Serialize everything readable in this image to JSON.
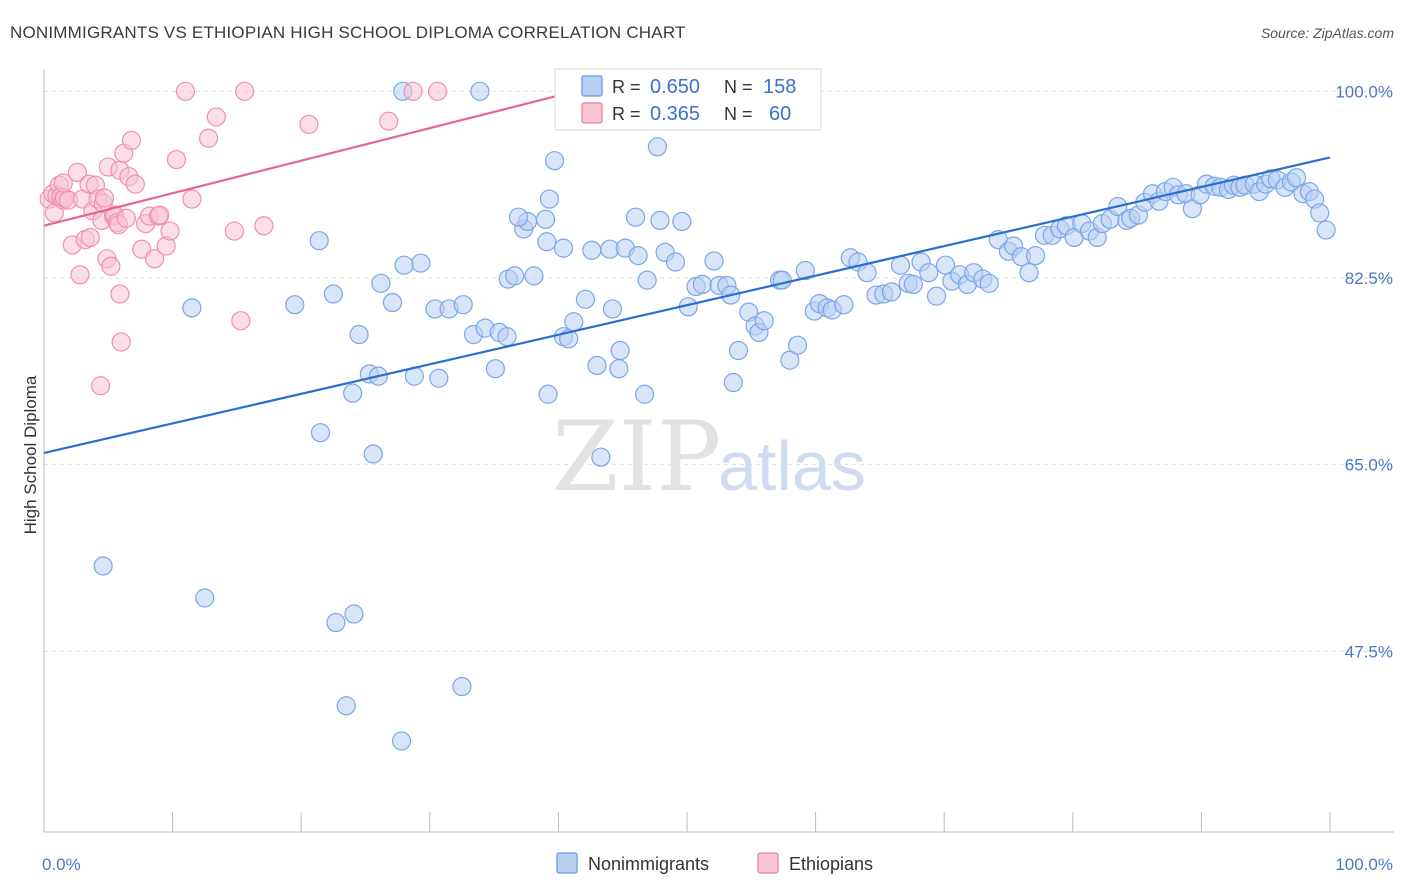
{
  "title": "NONIMMIGRANTS VS ETHIOPIAN HIGH SCHOOL DIPLOMA CORRELATION CHART",
  "source": "Source: ZipAtlas.com",
  "watermark": {
    "zip": "ZIP",
    "atlas": "atlas"
  },
  "colors": {
    "blue": "#7aa6e8",
    "blue_fill": "#b8d0f2",
    "blue_line": "#2a6fd0",
    "pink": "#f08fb0",
    "pink_fill": "#f7c3d5",
    "pink_line": "#e8648f",
    "accent_text": "#3b6fd0"
  },
  "legend": {
    "rows": [
      {
        "r_label": "R = ",
        "r_value": "0.650",
        "n_label": "N = ",
        "n_value": "158"
      },
      {
        "r_label": "R = ",
        "r_value": "0.365",
        "n_label": "N = ",
        "n_value": "60"
      }
    ]
  },
  "bottom_legend": [
    "Nonimmigrants",
    "Ethiopians"
  ],
  "chart_data": {
    "type": "scatter",
    "title": "NONIMMIGRANTS VS ETHIOPIAN HIGH SCHOOL DIPLOMA CORRELATION CHART",
    "xlabel": "",
    "ylabel": "High School Diploma",
    "xlim": [
      0,
      100
    ],
    "ylim": [
      31.5,
      102
    ],
    "x_tick_labels": [
      "0.0%",
      "100.0%"
    ],
    "y_ticks": [
      47.5,
      65.0,
      82.5,
      100.0
    ],
    "y_tick_labels": [
      "47.5%",
      "65.0%",
      "82.5%",
      "100.0%"
    ],
    "grid": true,
    "legend_placement": "top-center",
    "series": [
      {
        "name": "Nonimmigrants",
        "color": "#7aa6e8",
        "r": 0.65,
        "n": 158,
        "trend": {
          "x": [
            0,
            100
          ],
          "y": [
            66.1,
            93.8
          ]
        },
        "points": [
          [
            11.5,
            79.7
          ],
          [
            19.5,
            80.0
          ],
          [
            21.4,
            86.0
          ],
          [
            21.5,
            68.0
          ],
          [
            24.5,
            77.2
          ],
          [
            25.3,
            73.5
          ],
          [
            26.0,
            73.3
          ],
          [
            25.6,
            66.0
          ],
          [
            24.0,
            71.7
          ],
          [
            26.2,
            82.0
          ],
          [
            27.1,
            80.2
          ],
          [
            28.8,
            73.3
          ],
          [
            29.3,
            83.9
          ],
          [
            30.4,
            79.6
          ],
          [
            30.7,
            73.1
          ],
          [
            31.5,
            79.6
          ],
          [
            32.6,
            80.0
          ],
          [
            33.4,
            77.2
          ],
          [
            34.3,
            77.8
          ],
          [
            35.1,
            74.0
          ],
          [
            35.4,
            77.4
          ],
          [
            36.0,
            77.0
          ],
          [
            36.1,
            82.4
          ],
          [
            36.6,
            82.7
          ],
          [
            37.3,
            87.1
          ],
          [
            37.6,
            87.8
          ],
          [
            38.1,
            82.7
          ],
          [
            39.1,
            85.9
          ],
          [
            39.3,
            89.9
          ],
          [
            39.2,
            71.6
          ],
          [
            39.7,
            93.5
          ],
          [
            40.4,
            77.0
          ],
          [
            40.8,
            76.8
          ],
          [
            41.2,
            78.4
          ],
          [
            42.1,
            80.5
          ],
          [
            42.6,
            85.1
          ],
          [
            43.0,
            74.3
          ],
          [
            43.3,
            65.7
          ],
          [
            44.0,
            85.2
          ],
          [
            44.2,
            79.6
          ],
          [
            44.8,
            75.7
          ],
          [
            45.2,
            85.3
          ],
          [
            46.0,
            88.2
          ],
          [
            46.2,
            84.6
          ],
          [
            46.7,
            71.6
          ],
          [
            46.9,
            82.3
          ],
          [
            47.9,
            87.9
          ],
          [
            48.3,
            84.9
          ],
          [
            49.1,
            84.0
          ],
          [
            49.6,
            87.8
          ],
          [
            50.1,
            79.8
          ],
          [
            50.7,
            81.7
          ],
          [
            51.2,
            81.9
          ],
          [
            52.1,
            84.1
          ],
          [
            52.5,
            81.8
          ],
          [
            53.1,
            81.8
          ],
          [
            53.4,
            80.9
          ],
          [
            53.6,
            72.7
          ],
          [
            54.0,
            75.7
          ],
          [
            54.8,
            79.3
          ],
          [
            55.3,
            78.0
          ],
          [
            55.6,
            77.4
          ],
          [
            56.0,
            78.5
          ],
          [
            57.2,
            82.3
          ],
          [
            57.4,
            82.3
          ],
          [
            58.0,
            74.8
          ],
          [
            58.6,
            76.2
          ],
          [
            59.2,
            83.2
          ],
          [
            59.9,
            79.4
          ],
          [
            60.3,
            80.1
          ],
          [
            60.9,
            79.7
          ],
          [
            61.3,
            79.5
          ],
          [
            62.2,
            80.0
          ],
          [
            62.7,
            84.4
          ],
          [
            63.3,
            84.0
          ],
          [
            64.0,
            83.0
          ],
          [
            64.7,
            80.9
          ],
          [
            65.3,
            81.0
          ],
          [
            65.9,
            81.2
          ],
          [
            66.6,
            83.7
          ],
          [
            67.2,
            82.0
          ],
          [
            67.6,
            81.9
          ],
          [
            68.2,
            84.0
          ],
          [
            68.8,
            83.0
          ],
          [
            69.4,
            80.8
          ],
          [
            70.1,
            83.7
          ],
          [
            70.6,
            82.2
          ],
          [
            71.2,
            82.8
          ],
          [
            71.8,
            81.9
          ],
          [
            72.3,
            83.0
          ],
          [
            73.0,
            82.4
          ],
          [
            73.5,
            82.0
          ],
          [
            74.2,
            86.1
          ],
          [
            75.0,
            85.0
          ],
          [
            75.4,
            85.5
          ],
          [
            76.0,
            84.5
          ],
          [
            76.6,
            83.0
          ],
          [
            77.1,
            84.6
          ],
          [
            77.8,
            86.5
          ],
          [
            78.4,
            86.5
          ],
          [
            79.0,
            87.1
          ],
          [
            79.5,
            87.4
          ],
          [
            80.1,
            86.3
          ],
          [
            80.7,
            87.6
          ],
          [
            81.3,
            86.9
          ],
          [
            81.9,
            86.3
          ],
          [
            82.3,
            87.6
          ],
          [
            82.9,
            88.0
          ],
          [
            83.5,
            89.2
          ],
          [
            84.2,
            87.9
          ],
          [
            84.5,
            88.1
          ],
          [
            85.1,
            88.4
          ],
          [
            85.6,
            89.6
          ],
          [
            86.2,
            90.4
          ],
          [
            86.7,
            89.7
          ],
          [
            87.2,
            90.6
          ],
          [
            87.8,
            91.0
          ],
          [
            88.2,
            90.3
          ],
          [
            88.8,
            90.4
          ],
          [
            89.3,
            89.0
          ],
          [
            89.9,
            90.3
          ],
          [
            90.4,
            91.3
          ],
          [
            91.0,
            91.1
          ],
          [
            91.5,
            91.0
          ],
          [
            92.1,
            90.8
          ],
          [
            92.5,
            91.2
          ],
          [
            93.0,
            91.0
          ],
          [
            93.4,
            91.2
          ],
          [
            94.1,
            91.3
          ],
          [
            94.5,
            90.6
          ],
          [
            95.0,
            91.3
          ],
          [
            95.4,
            91.8
          ],
          [
            95.9,
            91.7
          ],
          [
            96.5,
            91.0
          ],
          [
            97.0,
            91.5
          ],
          [
            97.4,
            91.9
          ],
          [
            97.9,
            90.4
          ],
          [
            98.4,
            90.6
          ],
          [
            98.8,
            89.9
          ],
          [
            99.2,
            88.6
          ],
          [
            99.7,
            87.0
          ],
          [
            40.4,
            85.3
          ],
          [
            36.9,
            88.2
          ],
          [
            44.7,
            74.0
          ],
          [
            22.5,
            81.0
          ],
          [
            28.0,
            83.7
          ],
          [
            27.9,
            100.0
          ],
          [
            33.9,
            100.0
          ],
          [
            47.7,
            94.8
          ],
          [
            39.0,
            88.0
          ],
          [
            4.6,
            55.5
          ],
          [
            12.5,
            52.5
          ],
          [
            22.7,
            50.2
          ],
          [
            24.1,
            51.0
          ],
          [
            23.5,
            42.4
          ],
          [
            27.8,
            39.1
          ],
          [
            32.5,
            44.2
          ]
        ]
      },
      {
        "name": "Ethiopians",
        "color": "#f08fb0",
        "r": 0.365,
        "n": 60,
        "trend": {
          "x": [
            0,
            40
          ],
          "y": [
            87.4,
            99.6
          ]
        },
        "points": [
          [
            0.4,
            89.9
          ],
          [
            0.7,
            90.4
          ],
          [
            0.8,
            88.6
          ],
          [
            1.0,
            90.2
          ],
          [
            1.2,
            91.2
          ],
          [
            1.3,
            90.1
          ],
          [
            1.5,
            89.8
          ],
          [
            1.6,
            90.0
          ],
          [
            1.9,
            89.8
          ],
          [
            2.2,
            85.6
          ],
          [
            2.6,
            92.4
          ],
          [
            2.8,
            82.8
          ],
          [
            3.0,
            89.9
          ],
          [
            3.2,
            86.1
          ],
          [
            3.5,
            91.3
          ],
          [
            3.6,
            86.3
          ],
          [
            3.8,
            88.8
          ],
          [
            4.0,
            91.2
          ],
          [
            4.2,
            89.9
          ],
          [
            4.4,
            72.4
          ],
          [
            4.5,
            87.9
          ],
          [
            4.6,
            89.5
          ],
          [
            4.7,
            90.0
          ],
          [
            4.9,
            84.3
          ],
          [
            5.0,
            92.9
          ],
          [
            5.2,
            83.6
          ],
          [
            5.4,
            88.3
          ],
          [
            5.5,
            88.4
          ],
          [
            5.7,
            87.7
          ],
          [
            5.8,
            87.5
          ],
          [
            5.9,
            92.6
          ],
          [
            5.9,
            81.0
          ],
          [
            6.0,
            76.5
          ],
          [
            6.2,
            94.2
          ],
          [
            6.4,
            88.1
          ],
          [
            6.6,
            92.0
          ],
          [
            6.8,
            95.4
          ],
          [
            7.1,
            91.3
          ],
          [
            7.6,
            85.2
          ],
          [
            7.9,
            87.6
          ],
          [
            8.2,
            88.3
          ],
          [
            8.6,
            84.3
          ],
          [
            8.9,
            88.3
          ],
          [
            9.0,
            88.4
          ],
          [
            9.5,
            85.5
          ],
          [
            10.3,
            93.6
          ],
          [
            11.5,
            89.9
          ],
          [
            12.8,
            95.6
          ],
          [
            13.4,
            97.6
          ],
          [
            14.8,
            86.9
          ],
          [
            15.3,
            78.5
          ],
          [
            20.6,
            96.9
          ],
          [
            26.8,
            97.2
          ],
          [
            28.7,
            100.0
          ],
          [
            30.6,
            100.0
          ],
          [
            15.6,
            100.0
          ],
          [
            11.0,
            100.0
          ],
          [
            17.1,
            87.4
          ],
          [
            9.8,
            86.9
          ],
          [
            1.5,
            91.4
          ]
        ]
      }
    ]
  }
}
